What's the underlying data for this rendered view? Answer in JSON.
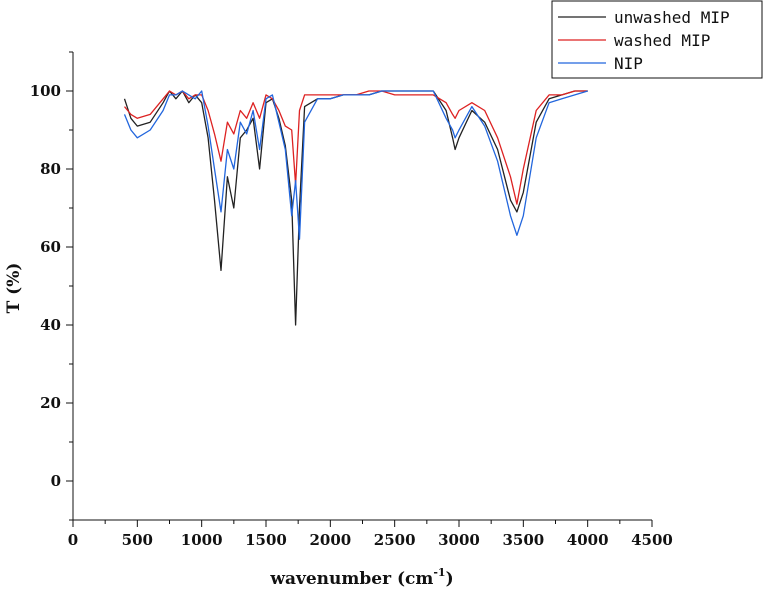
{
  "chart_data": {
    "type": "line",
    "title": "",
    "xlabel": "wavenumber (cm",
    "xlabel_sup": "-1",
    "xlabel_tail": ")",
    "ylabel": "T (%)",
    "xlim": [
      0,
      4500
    ],
    "ylim": [
      -10,
      110
    ],
    "x_ticks": [
      "0",
      "500",
      "1000",
      "1500",
      "2000",
      "2500",
      "3000",
      "3500",
      "4000",
      "4500"
    ],
    "y_ticks": [
      "0",
      "20",
      "40",
      "60",
      "80",
      "100"
    ],
    "legend_position": "top-right",
    "grid": false,
    "series": [
      {
        "name": "unwashed MIP",
        "color": "#222222",
        "points": [
          [
            400,
            98
          ],
          [
            450,
            93
          ],
          [
            500,
            91
          ],
          [
            600,
            92
          ],
          [
            700,
            97
          ],
          [
            750,
            100
          ],
          [
            800,
            98
          ],
          [
            850,
            100
          ],
          [
            900,
            97
          ],
          [
            950,
            99
          ],
          [
            1000,
            97
          ],
          [
            1050,
            88
          ],
          [
            1100,
            72
          ],
          [
            1150,
            54
          ],
          [
            1200,
            78
          ],
          [
            1250,
            70
          ],
          [
            1300,
            88
          ],
          [
            1350,
            90
          ],
          [
            1400,
            93
          ],
          [
            1450,
            80
          ],
          [
            1500,
            97
          ],
          [
            1550,
            98
          ],
          [
            1600,
            93
          ],
          [
            1650,
            86
          ],
          [
            1700,
            72
          ],
          [
            1730,
            40
          ],
          [
            1760,
            70
          ],
          [
            1800,
            96
          ],
          [
            1900,
            98
          ],
          [
            2000,
            98
          ],
          [
            2100,
            99
          ],
          [
            2200,
            99
          ],
          [
            2300,
            99
          ],
          [
            2400,
            100
          ],
          [
            2500,
            100
          ],
          [
            2600,
            100
          ],
          [
            2700,
            100
          ],
          [
            2800,
            100
          ],
          [
            2900,
            95
          ],
          [
            2950,
            88
          ],
          [
            2970,
            85
          ],
          [
            3000,
            88
          ],
          [
            3100,
            95
          ],
          [
            3200,
            92
          ],
          [
            3300,
            85
          ],
          [
            3400,
            72
          ],
          [
            3450,
            69
          ],
          [
            3500,
            74
          ],
          [
            3600,
            92
          ],
          [
            3700,
            98
          ],
          [
            3800,
            99
          ],
          [
            3900,
            100
          ],
          [
            4000,
            100
          ]
        ]
      },
      {
        "name": "washed MIP",
        "color": "#dd2222",
        "points": [
          [
            400,
            96
          ],
          [
            450,
            94
          ],
          [
            500,
            93
          ],
          [
            600,
            94
          ],
          [
            700,
            98
          ],
          [
            750,
            100
          ],
          [
            800,
            99
          ],
          [
            850,
            100
          ],
          [
            900,
            98
          ],
          [
            950,
            99
          ],
          [
            1000,
            99
          ],
          [
            1050,
            95
          ],
          [
            1100,
            89
          ],
          [
            1150,
            82
          ],
          [
            1200,
            92
          ],
          [
            1250,
            89
          ],
          [
            1300,
            95
          ],
          [
            1350,
            93
          ],
          [
            1400,
            97
          ],
          [
            1450,
            93
          ],
          [
            1500,
            99
          ],
          [
            1550,
            98
          ],
          [
            1600,
            95
          ],
          [
            1650,
            91
          ],
          [
            1700,
            90
          ],
          [
            1730,
            76
          ],
          [
            1760,
            95
          ],
          [
            1800,
            99
          ],
          [
            1900,
            99
          ],
          [
            2000,
            99
          ],
          [
            2100,
            99
          ],
          [
            2200,
            99
          ],
          [
            2300,
            100
          ],
          [
            2400,
            100
          ],
          [
            2500,
            99
          ],
          [
            2600,
            99
          ],
          [
            2700,
            99
          ],
          [
            2800,
            99
          ],
          [
            2900,
            97
          ],
          [
            2950,
            94
          ],
          [
            2970,
            93
          ],
          [
            3000,
            95
          ],
          [
            3100,
            97
          ],
          [
            3200,
            95
          ],
          [
            3300,
            88
          ],
          [
            3400,
            78
          ],
          [
            3450,
            71
          ],
          [
            3500,
            80
          ],
          [
            3600,
            95
          ],
          [
            3700,
            99
          ],
          [
            3800,
            99
          ],
          [
            3900,
            100
          ],
          [
            4000,
            100
          ]
        ]
      },
      {
        "name": "NIP",
        "color": "#2266dd",
        "points": [
          [
            400,
            94
          ],
          [
            450,
            90
          ],
          [
            500,
            88
          ],
          [
            600,
            90
          ],
          [
            700,
            95
          ],
          [
            750,
            99
          ],
          [
            800,
            99
          ],
          [
            850,
            100
          ],
          [
            900,
            99
          ],
          [
            950,
            98
          ],
          [
            1000,
            100
          ],
          [
            1050,
            91
          ],
          [
            1100,
            80
          ],
          [
            1150,
            69
          ],
          [
            1200,
            85
          ],
          [
            1250,
            80
          ],
          [
            1300,
            92
          ],
          [
            1350,
            89
          ],
          [
            1400,
            95
          ],
          [
            1450,
            85
          ],
          [
            1500,
            98
          ],
          [
            1550,
            99
          ],
          [
            1600,
            92
          ],
          [
            1650,
            85
          ],
          [
            1700,
            68
          ],
          [
            1730,
            77
          ],
          [
            1760,
            62
          ],
          [
            1800,
            92
          ],
          [
            1900,
            98
          ],
          [
            2000,
            98
          ],
          [
            2100,
            99
          ],
          [
            2200,
            99
          ],
          [
            2300,
            99
          ],
          [
            2400,
            100
          ],
          [
            2500,
            100
          ],
          [
            2600,
            100
          ],
          [
            2700,
            100
          ],
          [
            2800,
            100
          ],
          [
            2900,
            93
          ],
          [
            2950,
            90
          ],
          [
            2970,
            88
          ],
          [
            3000,
            90
          ],
          [
            3100,
            96
          ],
          [
            3200,
            91
          ],
          [
            3300,
            82
          ],
          [
            3400,
            68
          ],
          [
            3450,
            63
          ],
          [
            3500,
            68
          ],
          [
            3600,
            88
          ],
          [
            3700,
            97
          ],
          [
            3800,
            98
          ],
          [
            3900,
            99
          ],
          [
            4000,
            100
          ]
        ]
      }
    ]
  }
}
